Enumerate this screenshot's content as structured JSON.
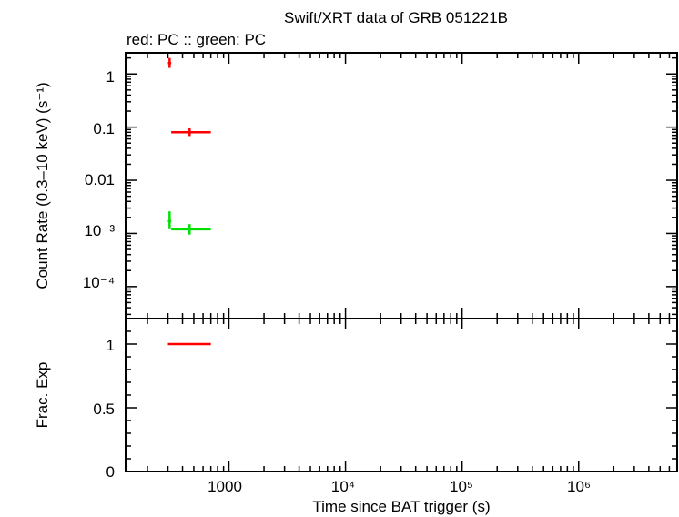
{
  "title": "Swift/XRT data of GRB 051221B",
  "subtitle": "red: PC  :: green: PC",
  "colors": {
    "red": "#ff0000",
    "green": "#00e000",
    "axis": "#000000"
  },
  "chart_data": [
    {
      "type": "scatter",
      "panel": "top",
      "ylabel": "Count Rate (0.3–10 keV) (s⁻¹)",
      "xscale": "log",
      "yscale": "log",
      "xlim": [
        130,
        7000000
      ],
      "ylim": [
        2.5e-05,
        2.5
      ],
      "ytick_labels": [
        "1",
        "0.1",
        "0.01",
        "10⁻³",
        "10⁻⁴"
      ],
      "grid": false,
      "series": [
        {
          "color": "red",
          "points": [
            {
              "x": 310,
              "x_lo": 300,
              "x_hi": 320,
              "y": 1.6,
              "y_lo": 1.3,
              "y_hi": 2.0
            },
            {
              "x": 460,
              "x_lo": 320,
              "x_hi": 700,
              "y": 0.08,
              "y_lo": 0.068,
              "y_hi": 0.095
            }
          ]
        },
        {
          "color": "green",
          "points": [
            {
              "x": 310,
              "x_lo": 300,
              "x_hi": 320,
              "y": 0.0017,
              "y_lo": 0.0012,
              "y_hi": 0.0026
            },
            {
              "x": 460,
              "x_lo": 320,
              "x_hi": 700,
              "y": 0.0012,
              "y_lo": 0.00095,
              "y_hi": 0.0015
            }
          ]
        }
      ]
    },
    {
      "type": "scatter",
      "panel": "bottom",
      "xlabel": "Time since BAT trigger (s)",
      "ylabel": "Frac. Exp",
      "xscale": "log",
      "xlim": [
        130,
        7000000
      ],
      "ylim": [
        0,
        1.2
      ],
      "xtick_labels": [
        "1000",
        "10⁴",
        "10⁵",
        "10⁶"
      ],
      "ytick_labels": [
        "1",
        "0.5",
        "0"
      ],
      "series": [
        {
          "color": "red",
          "points": [
            {
              "x": 460,
              "x_lo": 300,
              "x_hi": 700,
              "y": 1.0
            }
          ]
        }
      ]
    }
  ]
}
